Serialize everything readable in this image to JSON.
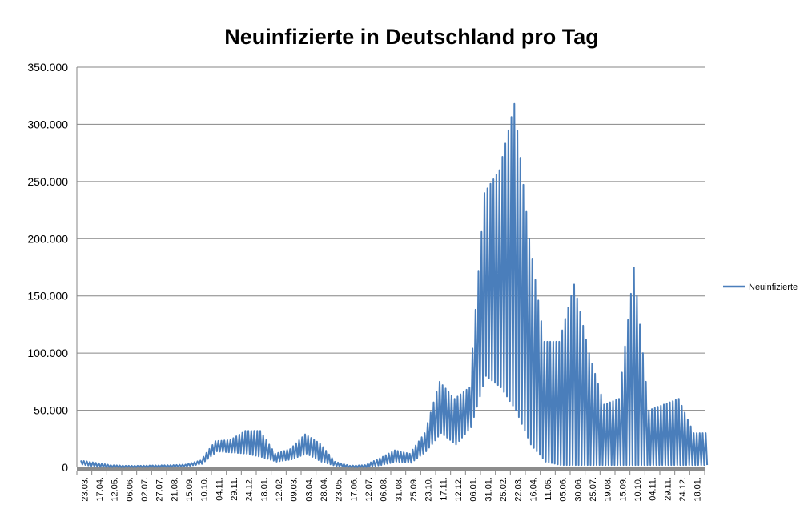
{
  "chart_data": {
    "type": "line",
    "title": "Neuinfizierte in Deutschland pro Tag",
    "xlabel": "",
    "ylabel": "",
    "ylim": [
      0,
      350000
    ],
    "y_ticks": [
      0,
      50000,
      100000,
      150000,
      200000,
      250000,
      300000,
      350000
    ],
    "y_tick_labels": [
      "0",
      "50.000",
      "100.000",
      "150.000",
      "200.000",
      "250.000",
      "300.000",
      "350.000"
    ],
    "grid": "horizontal",
    "legend_position": "right",
    "x_tick_labels": [
      "23.03.",
      "17.04.",
      "12.05.",
      "06.06.",
      "02.07.",
      "27.07.",
      "21.08.",
      "15.09.",
      "10.10.",
      "04.11.",
      "29.11.",
      "24.12.",
      "18.01.",
      "12.02.",
      "09.03.",
      "03.04.",
      "28.04.",
      "23.05.",
      "17.06.",
      "12.07.",
      "06.08.",
      "31.08.",
      "25.09.",
      "23.10.",
      "17.11.",
      "12.12.",
      "06.01.",
      "31.01.",
      "25.02.",
      "22.03.",
      "16.04.",
      "11.05.",
      "05.06.",
      "30.06.",
      "25.07.",
      "19.08.",
      "15.09.",
      "10.10.",
      "04.11.",
      "29.11.",
      "24.12.",
      "18.01."
    ],
    "series": [
      {
        "name": "Neuinfizierte",
        "color": "#4a7ebb",
        "weekly_oscillation": true,
        "values_per_tick": [
          [
            6000,
            2500
          ],
          [
            4000,
            500
          ],
          [
            2000,
            300
          ],
          [
            1500,
            200
          ],
          [
            1500,
            300
          ],
          [
            1800,
            400
          ],
          [
            2000,
            500
          ],
          [
            2500,
            1000
          ],
          [
            6000,
            3000
          ],
          [
            23000,
            14000
          ],
          [
            24000,
            13000
          ],
          [
            32000,
            12000
          ],
          [
            32000,
            9000
          ],
          [
            12000,
            5000
          ],
          [
            16000,
            7000
          ],
          [
            29000,
            12000
          ],
          [
            21000,
            5000
          ],
          [
            5000,
            1000
          ],
          [
            1500,
            200
          ],
          [
            2000,
            300
          ],
          [
            8000,
            2000
          ],
          [
            15000,
            5000
          ],
          [
            12000,
            4000
          ],
          [
            30000,
            14000
          ],
          [
            75000,
            30000
          ],
          [
            60000,
            20000
          ],
          [
            70000,
            35000
          ],
          [
            240000,
            80000
          ],
          [
            260000,
            70000
          ],
          [
            318000,
            50000
          ],
          [
            200000,
            20000
          ],
          [
            110000,
            5000
          ],
          [
            110000,
            2000
          ],
          [
            160000,
            2000
          ],
          [
            100000,
            2000
          ],
          [
            55000,
            2000
          ],
          [
            60000,
            2000
          ],
          [
            175000,
            2000
          ],
          [
            50000,
            2000
          ],
          [
            55000,
            2000
          ],
          [
            60000,
            2000
          ],
          [
            30000,
            2000
          ]
        ]
      }
    ]
  }
}
